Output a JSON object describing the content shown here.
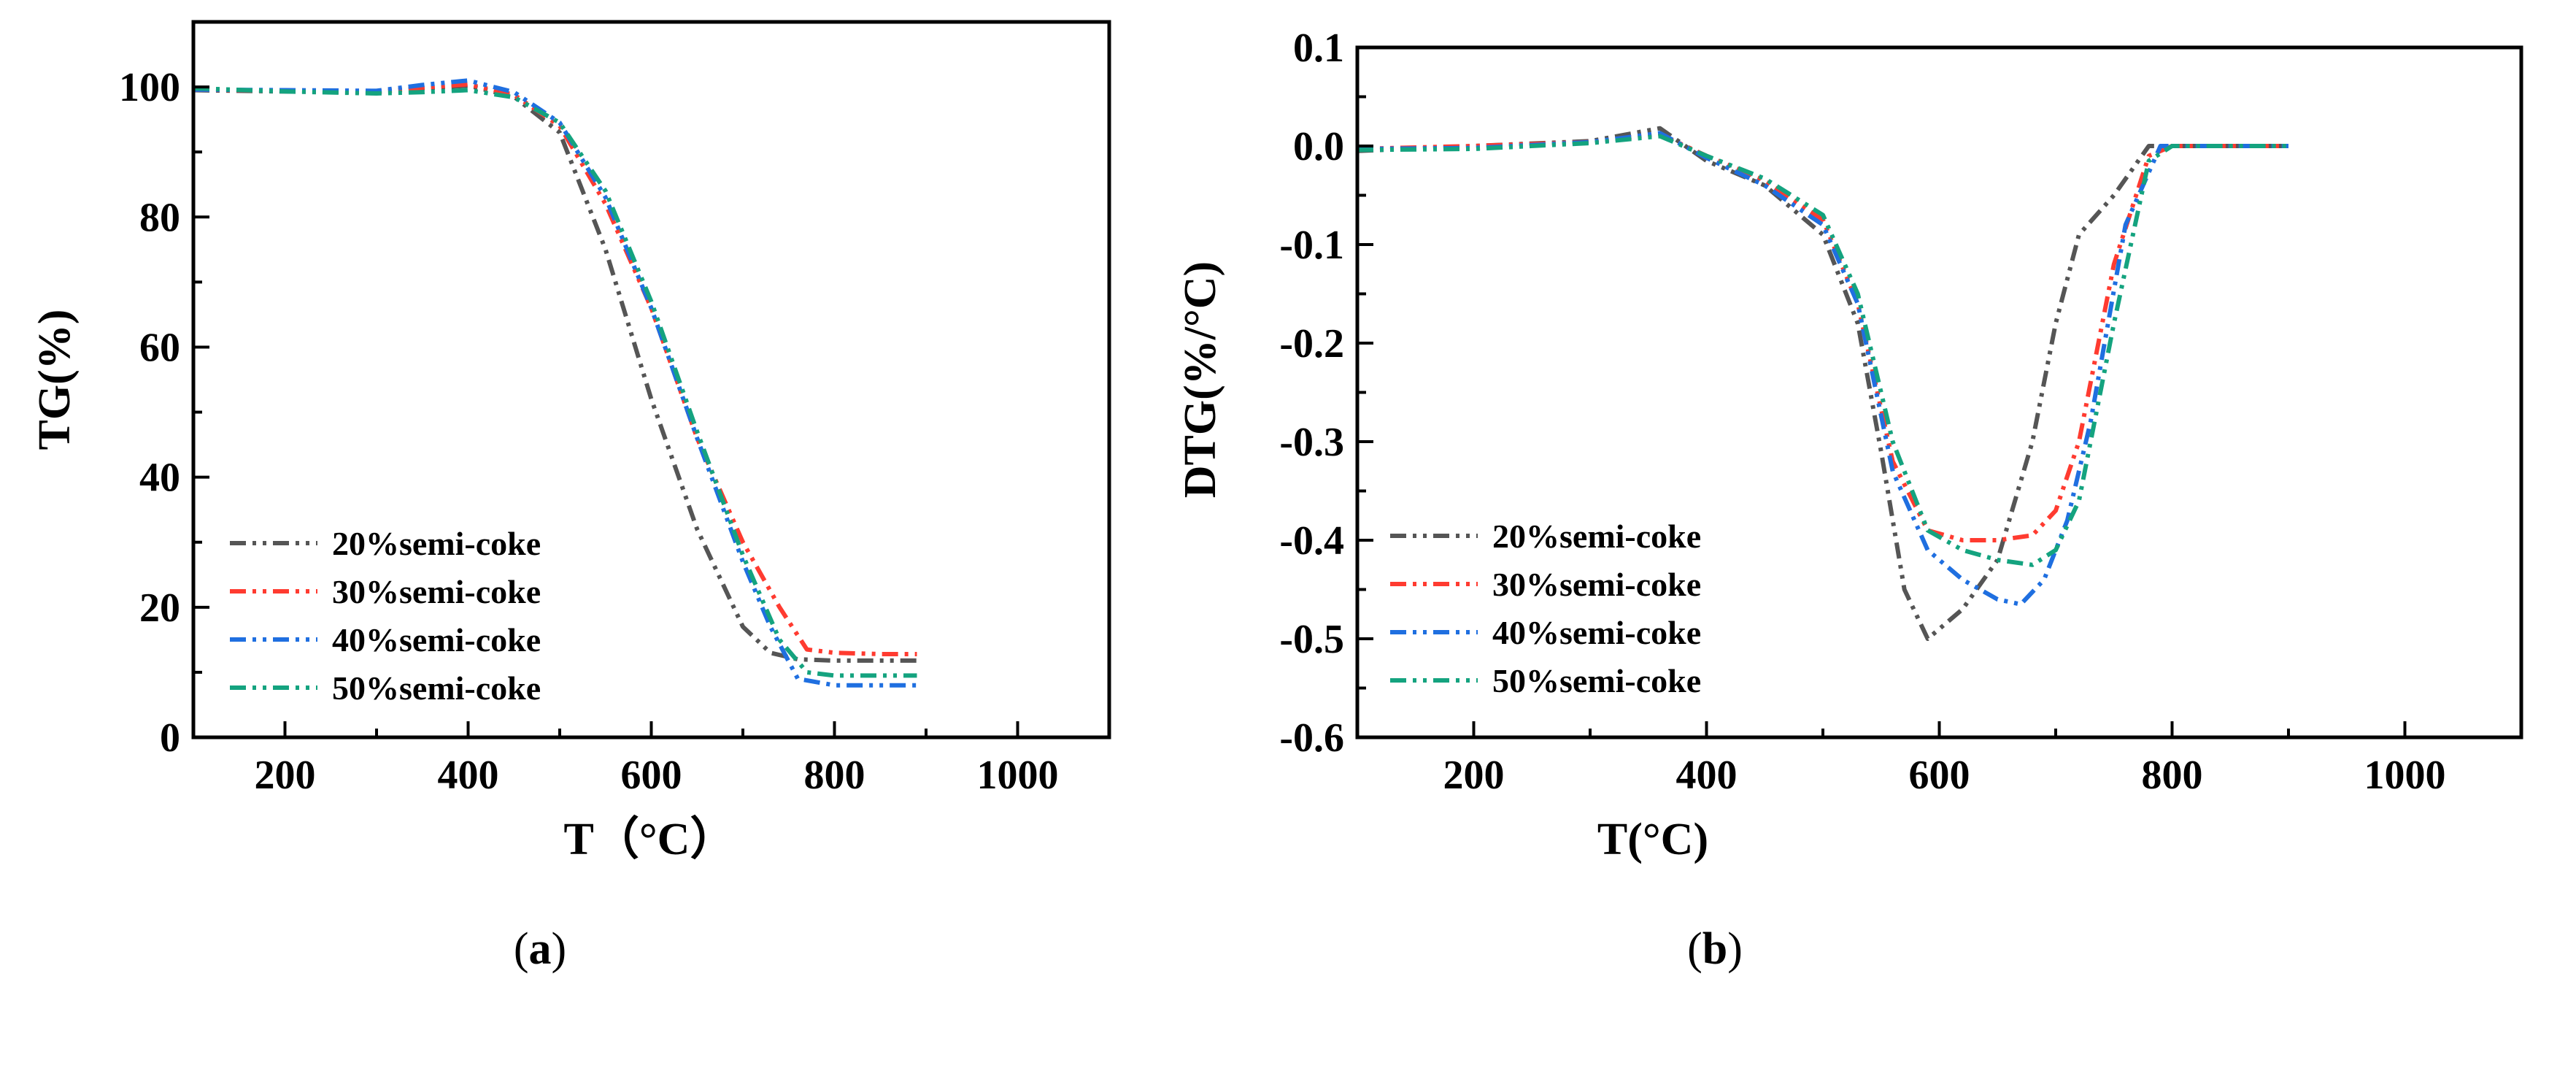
{
  "chart_data": [
    {
      "panel_id": "a",
      "type": "line",
      "caption": "a",
      "title": "",
      "xlabel": "T（°C）",
      "ylabel": "TG(%)",
      "xlim": [
        100,
        1100
      ],
      "ylim": [
        0,
        110
      ],
      "xticks": [
        200,
        400,
        600,
        800,
        1000
      ],
      "yticks": [
        0,
        20,
        40,
        60,
        80,
        100
      ],
      "grid": false,
      "legend_position": "lower-left",
      "series": [
        {
          "name": "20%semi-coke",
          "color": "#555555",
          "dash": "dash-dot-dot",
          "x": [
            100,
            200,
            300,
            350,
            400,
            450,
            500,
            550,
            600,
            650,
            700,
            730,
            760,
            800,
            850,
            890
          ],
          "y": [
            99.5,
            99.3,
            99.2,
            99.8,
            100.2,
            98.5,
            93,
            75,
            52,
            32,
            17,
            13,
            12,
            11.8,
            11.8,
            11.8
          ]
        },
        {
          "name": "30%semi-coke",
          "color": "#ff3b30",
          "dash": "dash-dot-dot",
          "x": [
            100,
            200,
            300,
            350,
            400,
            450,
            500,
            550,
            600,
            650,
            700,
            740,
            770,
            800,
            850,
            890
          ],
          "y": [
            99.6,
            99.4,
            99.3,
            99.9,
            100.4,
            98.8,
            94,
            82,
            66,
            46,
            30,
            20,
            13.5,
            13,
            12.8,
            12.8
          ]
        },
        {
          "name": "40%semi-coke",
          "color": "#1f6fe0",
          "dash": "dash-dot-dot",
          "x": [
            100,
            200,
            300,
            350,
            400,
            450,
            500,
            550,
            600,
            650,
            700,
            730,
            760,
            800,
            850,
            890
          ],
          "y": [
            99.6,
            99.5,
            99.4,
            100.3,
            101,
            99.2,
            94.5,
            83,
            66,
            46,
            27,
            17,
            9,
            8,
            8,
            8
          ]
        },
        {
          "name": "50%semi-coke",
          "color": "#14a37f",
          "dash": "dash-dot-dot",
          "x": [
            100,
            200,
            300,
            350,
            400,
            450,
            500,
            550,
            600,
            650,
            700,
            740,
            770,
            800,
            850,
            890
          ],
          "y": [
            99.8,
            99.3,
            99,
            99.2,
            99.5,
            98.4,
            94.5,
            84,
            67,
            47,
            28,
            15,
            10,
            9.5,
            9.5,
            9.5
          ]
        }
      ]
    },
    {
      "panel_id": "b",
      "type": "line",
      "caption": "b",
      "title": "",
      "xlabel": "T(°C)",
      "ylabel": "DTG(%/°C)",
      "xlim": [
        100,
        1100
      ],
      "ylim": [
        -0.6,
        0.1
      ],
      "xticks": [
        200,
        400,
        600,
        800,
        1000
      ],
      "yticks": [
        0.1,
        0.0,
        -0.1,
        -0.2,
        -0.3,
        -0.4,
        -0.5,
        -0.6
      ],
      "ytick_labels": [
        "0.1",
        "0.0",
        "-0.1",
        "-0.2",
        "-0.3",
        "-0.4",
        "-0.5",
        "-0.6"
      ],
      "grid": false,
      "legend_position": "lower-left",
      "series": [
        {
          "name": "20%semi-coke",
          "color": "#555555",
          "dash": "dash-dot-dot",
          "x": [
            100,
            200,
            300,
            360,
            400,
            450,
            500,
            530,
            550,
            570,
            590,
            620,
            650,
            680,
            700,
            720,
            750,
            780,
            800,
            850,
            900
          ],
          "y": [
            -0.005,
            0,
            0.005,
            0.018,
            -0.015,
            -0.04,
            -0.09,
            -0.18,
            -0.31,
            -0.45,
            -0.5,
            -0.47,
            -0.42,
            -0.3,
            -0.18,
            -0.09,
            -0.05,
            0,
            0,
            0,
            0
          ]
        },
        {
          "name": "30%semi-coke",
          "color": "#ff3b30",
          "dash": "dash-dot-dot",
          "x": [
            100,
            200,
            300,
            360,
            400,
            450,
            500,
            530,
            560,
            590,
            620,
            650,
            680,
            700,
            720,
            750,
            780,
            800,
            850,
            900
          ],
          "y": [
            -0.003,
            0,
            0.004,
            0.012,
            -0.01,
            -0.035,
            -0.075,
            -0.16,
            -0.32,
            -0.39,
            -0.4,
            -0.4,
            -0.395,
            -0.37,
            -0.3,
            -0.12,
            -0.01,
            0,
            0,
            0
          ]
        },
        {
          "name": "40%semi-coke",
          "color": "#1f6fe0",
          "dash": "dash-dot-dot",
          "x": [
            100,
            200,
            300,
            360,
            400,
            450,
            500,
            530,
            560,
            590,
            620,
            650,
            670,
            690,
            710,
            730,
            760,
            790,
            800,
            850,
            900
          ],
          "y": [
            -0.003,
            -0.002,
            0.004,
            0.013,
            -0.012,
            -0.04,
            -0.08,
            -0.16,
            -0.33,
            -0.41,
            -0.44,
            -0.46,
            -0.465,
            -0.44,
            -0.38,
            -0.28,
            -0.08,
            0,
            0,
            0,
            0
          ]
        },
        {
          "name": "50%semi-coke",
          "color": "#14a37f",
          "dash": "dash-dot-dot",
          "x": [
            100,
            200,
            300,
            360,
            400,
            450,
            500,
            530,
            560,
            590,
            620,
            650,
            680,
            700,
            720,
            750,
            780,
            800,
            850,
            900
          ],
          "y": [
            -0.004,
            -0.003,
            0.003,
            0.01,
            -0.01,
            -0.033,
            -0.07,
            -0.15,
            -0.3,
            -0.39,
            -0.41,
            -0.42,
            -0.425,
            -0.41,
            -0.36,
            -0.18,
            -0.015,
            0,
            0,
            0
          ]
        }
      ]
    }
  ]
}
